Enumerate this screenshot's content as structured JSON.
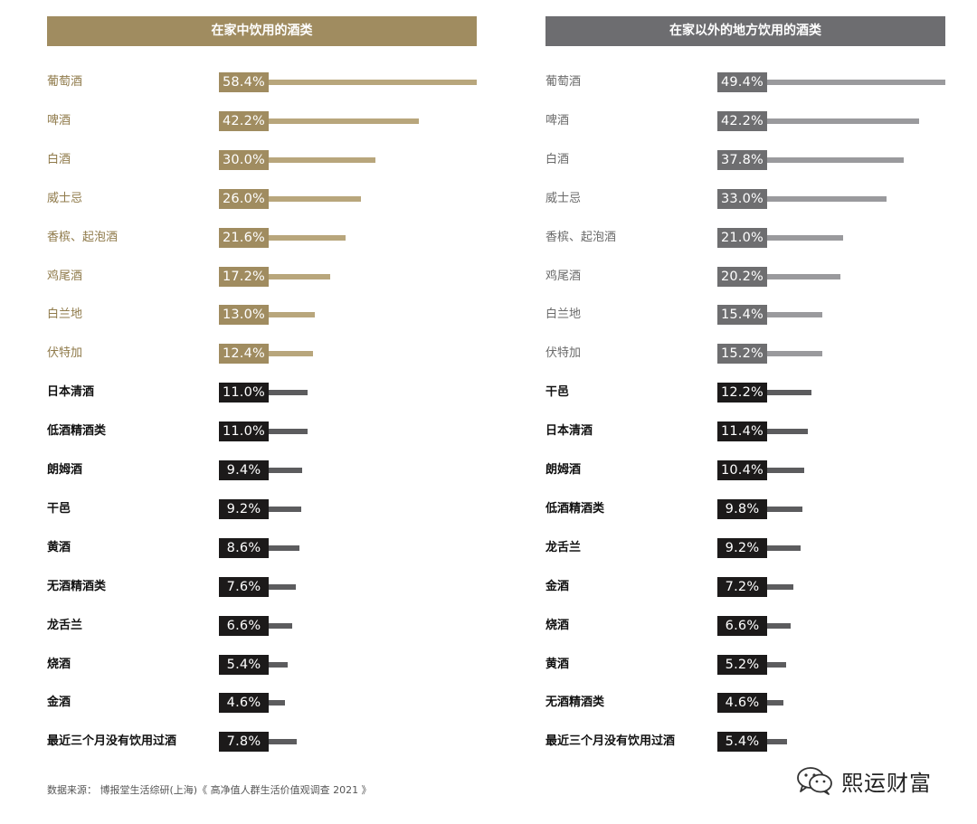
{
  "colors": {
    "gold": "#a08c60",
    "gold_bar": "#b8a67c",
    "gray_header": "#6d6d70",
    "gray_badge": "#6e6e70",
    "gray_bar": "#9a9a9d",
    "black_badge": "#1c1a1a",
    "dark_bar": "#5c5c5e",
    "label_gold": "#8f7a4a",
    "label_gray": "#6a6a6a",
    "label_dark": "#111111"
  },
  "source_text": "数据来源： 博报堂生活综研(上海)《 高净值人群生活价值观调查 2021 》",
  "watermark": {
    "text": "熙运财富",
    "icon": "wechat-icon"
  },
  "chart_data": [
    {
      "type": "bar",
      "title": "在家中饮用的酒类",
      "categories": [
        "葡萄酒",
        "啤酒",
        "白酒",
        "威士忌",
        "香槟、起泡酒",
        "鸡尾酒",
        "白兰地",
        "伏特加",
        "日本清酒",
        "低酒精酒类",
        "朗姆酒",
        "干邑",
        "黄酒",
        "无酒精酒类",
        "龙舌兰",
        "烧酒",
        "金酒",
        "最近三个月没有饮用过酒"
      ],
      "values": [
        58.4,
        42.2,
        30.0,
        26.0,
        21.6,
        17.2,
        13.0,
        12.4,
        11.0,
        11.0,
        9.4,
        9.2,
        8.6,
        7.6,
        6.6,
        5.4,
        4.6,
        7.8
      ],
      "value_labels": [
        "58.4%",
        "42.2%",
        "30.0%",
        "26.0%",
        "21.6%",
        "17.2%",
        "13.0%",
        "12.4%",
        "11.0%",
        "11.0%",
        "9.4%",
        "9.2%",
        "8.6%",
        "7.6%",
        "6.6%",
        "5.4%",
        "4.6%",
        "7.8%"
      ],
      "highlighted_top": 8,
      "theme": "gold"
    },
    {
      "type": "bar",
      "title": "在家以外的地方饮用的酒类",
      "categories": [
        "葡萄酒",
        "啤酒",
        "白酒",
        "威士忌",
        "香槟、起泡酒",
        "鸡尾酒",
        "白兰地",
        "伏特加",
        "干邑",
        "日本清酒",
        "朗姆酒",
        "低酒精酒类",
        "龙舌兰",
        "金酒",
        "烧酒",
        "黄酒",
        "无酒精酒类",
        "最近三个月没有饮用过酒"
      ],
      "values": [
        49.4,
        42.2,
        37.8,
        33.0,
        21.0,
        20.2,
        15.4,
        15.2,
        12.2,
        11.4,
        10.4,
        9.8,
        9.2,
        7.2,
        6.6,
        5.2,
        4.6,
        5.4
      ],
      "value_labels": [
        "49.4%",
        "42.2%",
        "37.8%",
        "33.0%",
        "21.0%",
        "20.2%",
        "15.4%",
        "15.2%",
        "12.2%",
        "11.4%",
        "10.4%",
        "9.8%",
        "9.2%",
        "7.2%",
        "6.6%",
        "5.2%",
        "4.6%",
        "5.4%"
      ],
      "highlighted_top": 8,
      "theme": "gray"
    }
  ]
}
